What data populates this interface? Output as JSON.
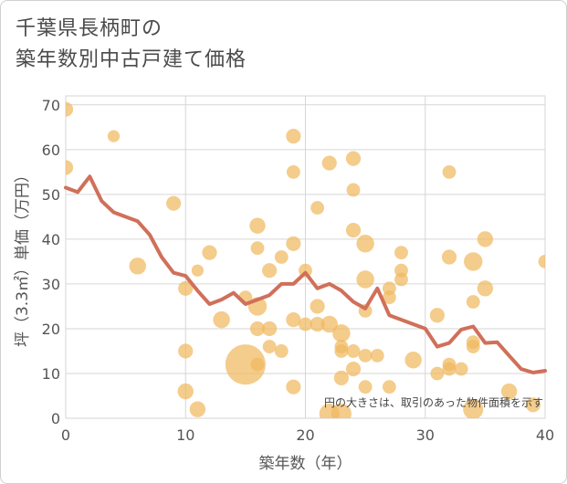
{
  "title_lines": [
    "千葉県長柄町の",
    "築年数別中古戸建て価格"
  ],
  "chart_data": {
    "type": "scatter",
    "title": "千葉県長柄町の築年数別中古戸建て価格",
    "xlabel": "築年数（年）",
    "ylabel": "坪（3.3㎡）単価（万円）",
    "xlim": [
      0,
      40
    ],
    "ylim": [
      0,
      72
    ],
    "xticks": [
      0,
      10,
      20,
      30,
      40
    ],
    "yticks": [
      0,
      10,
      20,
      30,
      40,
      50,
      60,
      70
    ],
    "grid": true,
    "note": "円の大きさは、取引のあった物件面積を示す",
    "colors": {
      "bubble": "#f0b95e",
      "line": "#d0705a",
      "grid": "#d6d6d6"
    },
    "bubbles": [
      {
        "x": 0,
        "y": 69,
        "s": 2
      },
      {
        "x": 0,
        "y": 56,
        "s": 2
      },
      {
        "x": 4,
        "y": 63,
        "s": 1
      },
      {
        "x": 6,
        "y": 34,
        "s": 3
      },
      {
        "x": 9,
        "y": 48,
        "s": 2
      },
      {
        "x": 10,
        "y": 29,
        "s": 2
      },
      {
        "x": 10,
        "y": 15,
        "s": 2
      },
      {
        "x": 10,
        "y": 6,
        "s": 2.5
      },
      {
        "x": 11,
        "y": 2,
        "s": 2.5
      },
      {
        "x": 11,
        "y": 33,
        "s": 1
      },
      {
        "x": 12,
        "y": 37,
        "s": 2
      },
      {
        "x": 13,
        "y": 22,
        "s": 3
      },
      {
        "x": 15,
        "y": 27,
        "s": 1.5
      },
      {
        "x": 15,
        "y": 12,
        "s": 28
      },
      {
        "x": 16,
        "y": 43,
        "s": 2.5
      },
      {
        "x": 16,
        "y": 38,
        "s": 1.5
      },
      {
        "x": 16,
        "y": 25,
        "s": 4
      },
      {
        "x": 16,
        "y": 20,
        "s": 2
      },
      {
        "x": 16,
        "y": 12,
        "s": 1.5
      },
      {
        "x": 17,
        "y": 33,
        "s": 2
      },
      {
        "x": 17,
        "y": 20,
        "s": 2
      },
      {
        "x": 17,
        "y": 16,
        "s": 1.5
      },
      {
        "x": 18,
        "y": 36,
        "s": 1.5
      },
      {
        "x": 18,
        "y": 15,
        "s": 1.5
      },
      {
        "x": 19,
        "y": 63,
        "s": 2
      },
      {
        "x": 19,
        "y": 55,
        "s": 1.5
      },
      {
        "x": 19,
        "y": 39,
        "s": 2
      },
      {
        "x": 19,
        "y": 22,
        "s": 2
      },
      {
        "x": 19,
        "y": 7,
        "s": 2
      },
      {
        "x": 20,
        "y": 33,
        "s": 1.5
      },
      {
        "x": 20,
        "y": 21,
        "s": 1.5
      },
      {
        "x": 21,
        "y": 47,
        "s": 1.5
      },
      {
        "x": 21,
        "y": 25,
        "s": 2
      },
      {
        "x": 21,
        "y": 21,
        "s": 2
      },
      {
        "x": 22,
        "y": 57,
        "s": 2
      },
      {
        "x": 22,
        "y": 21,
        "s": 3
      },
      {
        "x": 22,
        "y": 1,
        "s": 5
      },
      {
        "x": 23,
        "y": 19,
        "s": 3.5
      },
      {
        "x": 23,
        "y": 16,
        "s": 1.5
      },
      {
        "x": 23,
        "y": 15,
        "s": 1.5
      },
      {
        "x": 23,
        "y": 9,
        "s": 2
      },
      {
        "x": 23,
        "y": 1,
        "s": 5
      },
      {
        "x": 24,
        "y": 58,
        "s": 2
      },
      {
        "x": 24,
        "y": 51,
        "s": 1.5
      },
      {
        "x": 24,
        "y": 42,
        "s": 2
      },
      {
        "x": 24,
        "y": 15,
        "s": 1.5
      },
      {
        "x": 24,
        "y": 11,
        "s": 2
      },
      {
        "x": 25,
        "y": 39,
        "s": 3.5
      },
      {
        "x": 25,
        "y": 31,
        "s": 3.5
      },
      {
        "x": 25,
        "y": 24,
        "s": 1.5
      },
      {
        "x": 25,
        "y": 14,
        "s": 1.5
      },
      {
        "x": 25,
        "y": 7,
        "s": 1.5
      },
      {
        "x": 26,
        "y": 14,
        "s": 1.5
      },
      {
        "x": 27,
        "y": 29,
        "s": 1.5
      },
      {
        "x": 27,
        "y": 27,
        "s": 1.5
      },
      {
        "x": 27,
        "y": 7,
        "s": 1.5
      },
      {
        "x": 28,
        "y": 37,
        "s": 1.5
      },
      {
        "x": 28,
        "y": 33,
        "s": 1.5
      },
      {
        "x": 28,
        "y": 31,
        "s": 1.5
      },
      {
        "x": 29,
        "y": 13,
        "s": 3
      },
      {
        "x": 31,
        "y": 23,
        "s": 2
      },
      {
        "x": 31,
        "y": 10,
        "s": 1.5
      },
      {
        "x": 32,
        "y": 55,
        "s": 1.5
      },
      {
        "x": 32,
        "y": 36,
        "s": 2
      },
      {
        "x": 32,
        "y": 12,
        "s": 1.5
      },
      {
        "x": 32,
        "y": 11,
        "s": 1.5
      },
      {
        "x": 33,
        "y": 11,
        "s": 1.5
      },
      {
        "x": 34,
        "y": 35,
        "s": 4
      },
      {
        "x": 34,
        "y": 26,
        "s": 1.5
      },
      {
        "x": 34,
        "y": 17,
        "s": 1.5
      },
      {
        "x": 34,
        "y": 16,
        "s": 1.5
      },
      {
        "x": 34,
        "y": 2,
        "s": 5
      },
      {
        "x": 35,
        "y": 40,
        "s": 2.5
      },
      {
        "x": 35,
        "y": 29,
        "s": 2.5
      },
      {
        "x": 37,
        "y": 6,
        "s": 2.5
      },
      {
        "x": 39,
        "y": 3,
        "s": 2
      },
      {
        "x": 40,
        "y": 35,
        "s": 1.5
      }
    ],
    "trend": {
      "x": [
        0,
        1,
        2,
        3,
        4,
        5,
        6,
        7,
        8,
        9,
        10,
        11,
        12,
        13,
        14,
        15,
        16,
        17,
        18,
        19,
        20,
        21,
        22,
        23,
        24,
        25,
        26,
        27,
        28,
        29,
        30,
        31,
        32,
        33,
        34,
        35,
        36,
        37,
        38,
        39,
        40
      ],
      "y": [
        51.5,
        50.5,
        54,
        48.5,
        46,
        45,
        44,
        41,
        36,
        32.5,
        31.8,
        28.5,
        25.5,
        26.5,
        28,
        25.5,
        26.5,
        27.5,
        30,
        30,
        32.5,
        29,
        30,
        28.5,
        26,
        24.5,
        29,
        23,
        22,
        21,
        20,
        16,
        16.8,
        19.8,
        20.5,
        16.8,
        17,
        14,
        11,
        10.2,
        10.6
      ]
    }
  }
}
